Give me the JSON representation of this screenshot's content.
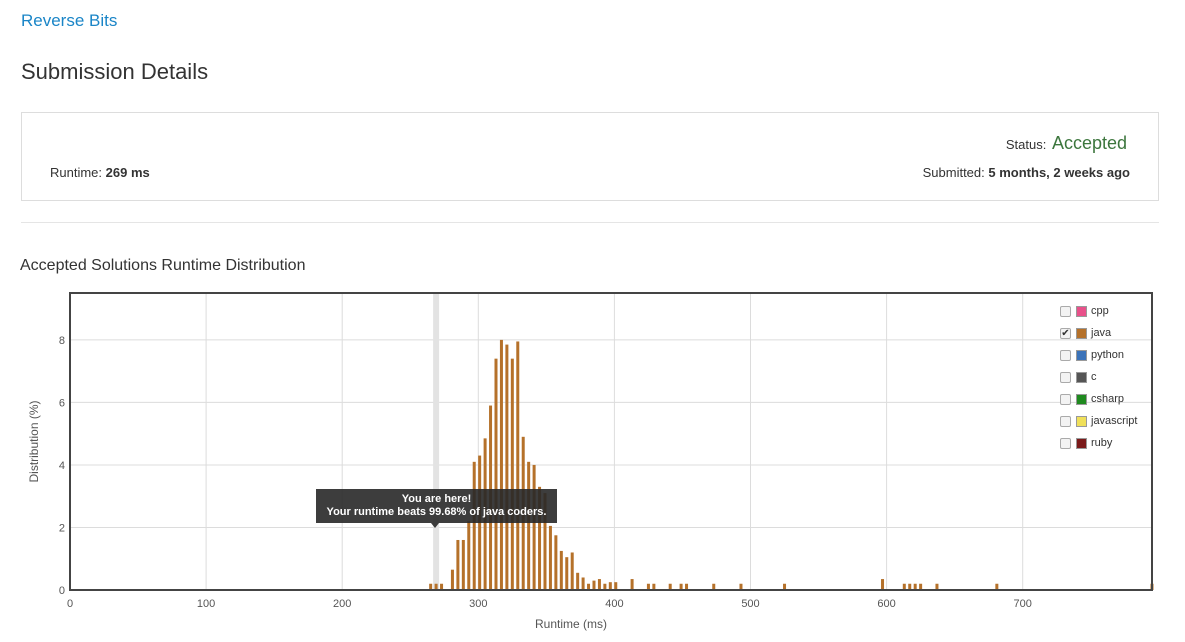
{
  "problem": {
    "title": "Reverse Bits"
  },
  "page_title": "Submission Details",
  "submission": {
    "status_label": "Status:",
    "status_value": "Accepted",
    "runtime_label": "Runtime:",
    "runtime_value": "269 ms",
    "submitted_label": "Submitted:",
    "submitted_value": "5 months, 2 weeks ago"
  },
  "chart_title": "Accepted Solutions Runtime Distribution",
  "legend": [
    {
      "name": "cpp",
      "color": "#e8518a",
      "checked": false
    },
    {
      "name": "java",
      "color": "#b5712a",
      "checked": true
    },
    {
      "name": "python",
      "color": "#3b73b9",
      "checked": false
    },
    {
      "name": "c",
      "color": "#555555",
      "checked": false
    },
    {
      "name": "csharp",
      "color": "#1f8a1f",
      "checked": false
    },
    {
      "name": "javascript",
      "color": "#f0e05a",
      "checked": false
    },
    {
      "name": "ruby",
      "color": "#7a1a1a",
      "checked": false
    }
  ],
  "tooltip": {
    "line1": "You are here!",
    "line2": "Your runtime beats 99.68% of java coders."
  },
  "chart_data": {
    "type": "bar",
    "xlabel": "Runtime (ms)",
    "ylabel": "Distribution (%)",
    "xlim": [
      0,
      795
    ],
    "ylim": [
      0,
      9.5
    ],
    "xticks": [
      0,
      100,
      200,
      300,
      400,
      500,
      600,
      700
    ],
    "yticks": [
      0,
      2,
      4,
      6,
      8
    ],
    "highlight_x": 269,
    "series": [
      {
        "name": "java",
        "color": "#b5712a",
        "x": [
          265,
          269,
          273,
          281,
          285,
          289,
          293,
          297,
          301,
          305,
          309,
          313,
          317,
          321,
          325,
          329,
          333,
          337,
          341,
          345,
          349,
          353,
          357,
          361,
          365,
          369,
          373,
          377,
          381,
          385,
          389,
          393,
          397,
          401,
          413,
          425,
          429,
          441,
          449,
          453,
          473,
          493,
          525,
          597,
          613,
          617,
          621,
          625,
          637,
          681,
          795
        ],
        "values": [
          0.2,
          0.2,
          0.2,
          0.65,
          1.6,
          1.6,
          2.2,
          4.1,
          4.3,
          4.85,
          5.9,
          7.4,
          8.0,
          7.85,
          7.4,
          7.95,
          4.9,
          4.1,
          4.0,
          3.3,
          3.1,
          2.05,
          1.75,
          1.25,
          1.05,
          1.2,
          0.55,
          0.4,
          0.2,
          0.3,
          0.35,
          0.2,
          0.25,
          0.25,
          0.35,
          0.2,
          0.2,
          0.2,
          0.2,
          0.2,
          0.2,
          0.2,
          0.2,
          0.35,
          0.2,
          0.2,
          0.2,
          0.2,
          0.2,
          0.2,
          0.2
        ]
      }
    ]
  }
}
